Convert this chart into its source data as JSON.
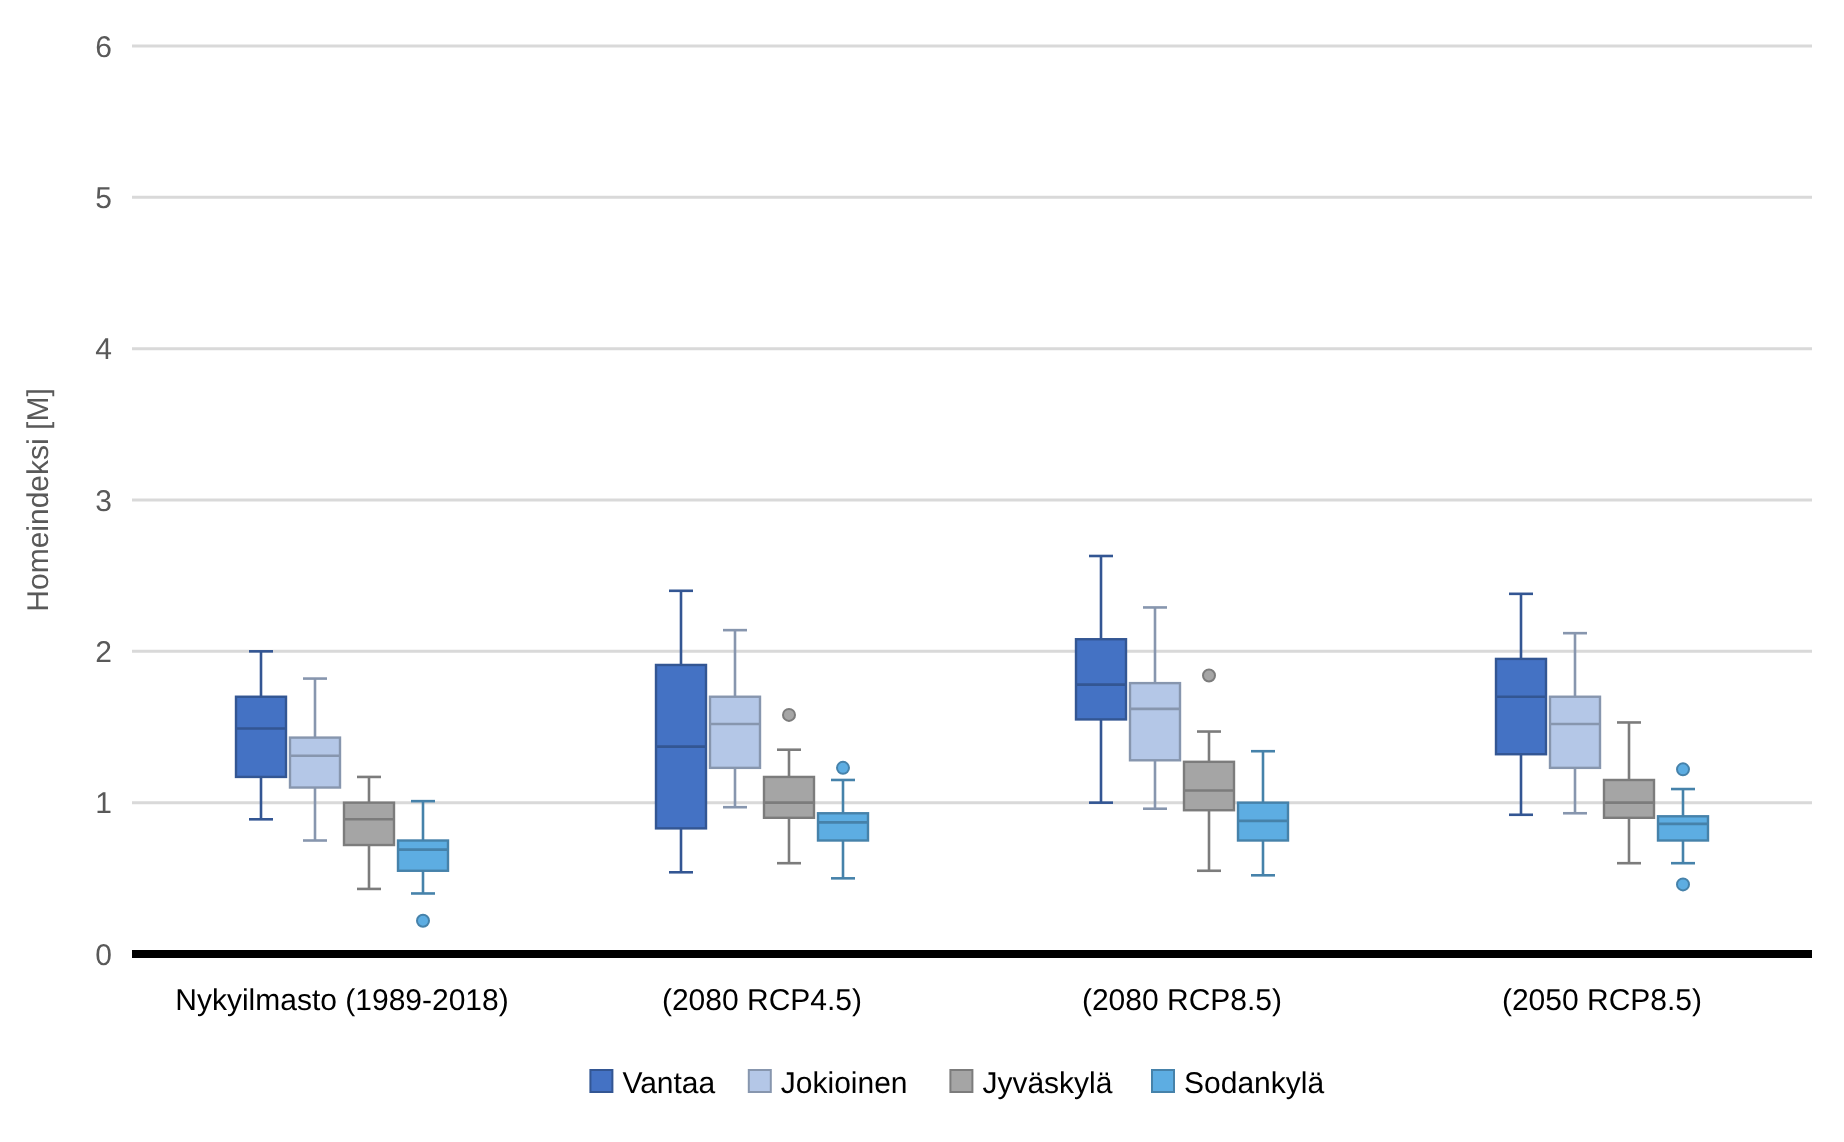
{
  "chart_data": {
    "type": "box",
    "ylabel": "Homeindeksi [M]",
    "categories": [
      "Nykyilmasto (1989-2018)",
      "(2080 RCP4.5)",
      "(2080 RCP8.5)",
      "(2050 RCP8.5)"
    ],
    "ylim": [
      0,
      6
    ],
    "yticks": [
      0,
      1,
      2,
      3,
      4,
      5,
      6
    ],
    "grid": "y",
    "legend": "bottom",
    "series": [
      {
        "name": "Vantaa",
        "color": "#4472c4",
        "boxes": [
          {
            "low": 0.89,
            "q1": 1.17,
            "median": 1.49,
            "q3": 1.7,
            "high": 2.0
          },
          {
            "low": 0.54,
            "q1": 0.83,
            "median": 1.37,
            "q3": 1.91,
            "high": 2.4
          },
          {
            "low": 1.0,
            "q1": 1.55,
            "median": 1.78,
            "q3": 2.08,
            "high": 2.63
          },
          {
            "low": 0.92,
            "q1": 1.32,
            "median": 1.7,
            "q3": 1.95,
            "high": 2.38
          }
        ]
      },
      {
        "name": "Jokioinen",
        "color": "#b4c7e7",
        "boxes": [
          {
            "low": 0.75,
            "q1": 1.1,
            "median": 1.31,
            "q3": 1.43,
            "high": 1.82
          },
          {
            "low": 0.97,
            "q1": 1.23,
            "median": 1.52,
            "q3": 1.7,
            "high": 2.14
          },
          {
            "low": 0.96,
            "q1": 1.28,
            "median": 1.62,
            "q3": 1.79,
            "high": 2.29
          },
          {
            "low": 0.93,
            "q1": 1.23,
            "median": 1.52,
            "q3": 1.7,
            "high": 2.12
          }
        ]
      },
      {
        "name": "Jyväskylä",
        "color": "#a5a5a5",
        "boxes": [
          {
            "low": 0.43,
            "q1": 0.72,
            "median": 0.89,
            "q3": 1.0,
            "high": 1.17
          },
          {
            "low": 0.6,
            "q1": 0.9,
            "median": 1.0,
            "q3": 1.17,
            "high": 1.35,
            "outliers": [
              1.58
            ]
          },
          {
            "low": 0.55,
            "q1": 0.95,
            "median": 1.08,
            "q3": 1.27,
            "high": 1.47,
            "outliers": [
              1.84
            ]
          },
          {
            "low": 0.6,
            "q1": 0.9,
            "median": 1.0,
            "q3": 1.15,
            "high": 1.53
          }
        ]
      },
      {
        "name": "Sodankylä",
        "color": "#5dade2",
        "boxes": [
          {
            "low": 0.4,
            "q1": 0.55,
            "median": 0.69,
            "q3": 0.75,
            "high": 1.01,
            "outliers": [
              0.22
            ]
          },
          {
            "low": 0.5,
            "q1": 0.75,
            "median": 0.87,
            "q3": 0.93,
            "high": 1.15,
            "outliers": [
              1.23
            ]
          },
          {
            "low": 0.52,
            "q1": 0.75,
            "median": 0.88,
            "q3": 1.0,
            "high": 1.34
          },
          {
            "low": 0.6,
            "q1": 0.75,
            "median": 0.86,
            "q3": 0.91,
            "high": 1.09,
            "outliers": [
              1.22,
              0.46
            ]
          }
        ]
      }
    ]
  }
}
